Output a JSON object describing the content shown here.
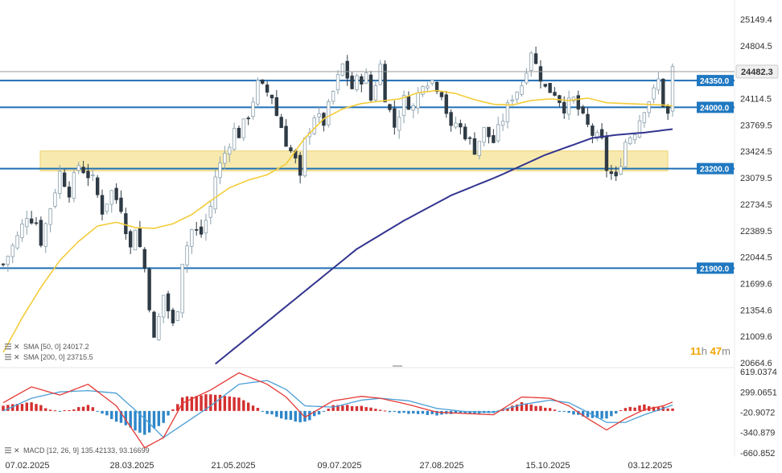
{
  "chart_data": [
    {
      "type": "candlestick",
      "title": "",
      "x_labels": [
        "07.02.2025",
        "28.03.2025",
        "21.05.2025",
        "09.07.2025",
        "27.08.2025",
        "15.10.2025",
        "03.12.2025"
      ],
      "y_ticks": [
        "25149.4",
        "24804.5",
        "24114.5",
        "23769.5",
        "23424.5",
        "23079.5",
        "22734.5",
        "22389.5",
        "22044.5",
        "21699.6",
        "21354.6",
        "21009.6",
        "20664.6"
      ],
      "ylim": [
        20664.6,
        25149.4
      ],
      "last_price": "24482.3",
      "countdown": {
        "hours": "11",
        "h": "h",
        "minutes": "47",
        "m": "m"
      },
      "levels": [
        {
          "value": 24350.0,
          "label": "24350.0"
        },
        {
          "value": 24000.0,
          "label": "24000.0"
        },
        {
          "value": 23200.0,
          "label": "23200.0"
        },
        {
          "value": 21900.0,
          "label": "21900.0"
        }
      ],
      "zone": {
        "from": 23170,
        "to": 23430,
        "color": "#f7e7a1"
      },
      "indicators": [
        {
          "name": "SMA",
          "params": "[50, 0]",
          "value": "24017.2",
          "color": "#f3cc3a"
        },
        {
          "name": "SMA",
          "params": "[200, 0]",
          "value": "23715.5",
          "color": "#33358f"
        }
      ],
      "close_path": [
        [
          0,
          21950
        ],
        [
          3,
          22300
        ],
        [
          5,
          22600
        ],
        [
          7,
          22500
        ],
        [
          8,
          22250
        ],
        [
          10,
          22700
        ],
        [
          12,
          23150
        ],
        [
          14,
          22900
        ],
        [
          16,
          23250
        ],
        [
          19,
          23050
        ],
        [
          21,
          22650
        ],
        [
          23,
          22900
        ],
        [
          25,
          22700
        ],
        [
          27,
          22150
        ],
        [
          28,
          22450
        ],
        [
          30,
          21900
        ],
        [
          32,
          20950
        ],
        [
          34,
          21550
        ],
        [
          36,
          21150
        ],
        [
          37,
          21400
        ],
        [
          38,
          22000
        ],
        [
          40,
          22400
        ],
        [
          42,
          22350
        ],
        [
          44,
          22700
        ],
        [
          45,
          23100
        ],
        [
          47,
          23400
        ],
        [
          49,
          23700
        ],
        [
          50,
          23650
        ],
        [
          52,
          23900
        ],
        [
          53,
          24100
        ],
        [
          54,
          24300
        ],
        [
          55,
          24250
        ],
        [
          57,
          24150
        ],
        [
          58,
          23900
        ],
        [
          59,
          23750
        ],
        [
          60,
          23550
        ],
        [
          62,
          23300
        ],
        [
          63,
          23050
        ],
        [
          64,
          23550
        ],
        [
          66,
          23900
        ],
        [
          68,
          23800
        ],
        [
          70,
          24200
        ],
        [
          72,
          24550
        ],
        [
          74,
          24250
        ],
        [
          75,
          24350
        ],
        [
          77,
          24400
        ],
        [
          78,
          24100
        ],
        [
          80,
          24550
        ],
        [
          81,
          24150
        ],
        [
          83,
          23750
        ],
        [
          85,
          24100
        ],
        [
          87,
          24000
        ],
        [
          89,
          24350
        ],
        [
          91,
          24350
        ],
        [
          93,
          24200
        ],
        [
          95,
          23700
        ],
        [
          96,
          23800
        ],
        [
          98,
          23650
        ],
        [
          100,
          23450
        ],
        [
          102,
          23700
        ],
        [
          104,
          23550
        ],
        [
          106,
          23850
        ],
        [
          108,
          24150
        ],
        [
          110,
          24300
        ],
        [
          112,
          24750
        ],
        [
          113,
          24550
        ],
        [
          115,
          24250
        ],
        [
          117,
          24200
        ],
        [
          119,
          24000
        ],
        [
          121,
          24100
        ],
        [
          123,
          23850
        ],
        [
          125,
          23650
        ],
        [
          127,
          23550
        ],
        [
          128,
          23200
        ],
        [
          130,
          23050
        ],
        [
          132,
          23550
        ],
        [
          134,
          23700
        ],
        [
          136,
          24000
        ],
        [
          138,
          24200
        ],
        [
          139,
          24350
        ],
        [
          140,
          24050
        ],
        [
          141,
          23900
        ],
        [
          142,
          24500
        ]
      ],
      "sma50_path": [
        [
          0,
          20800
        ],
        [
          4,
          21250
        ],
        [
          8,
          21650
        ],
        [
          12,
          22000
        ],
        [
          16,
          22250
        ],
        [
          20,
          22450
        ],
        [
          24,
          22500
        ],
        [
          28,
          22430
        ],
        [
          32,
          22420
        ],
        [
          36,
          22480
        ],
        [
          40,
          22600
        ],
        [
          44,
          22780
        ],
        [
          48,
          22950
        ],
        [
          52,
          23050
        ],
        [
          56,
          23120
        ],
        [
          60,
          23260
        ],
        [
          64,
          23600
        ],
        [
          68,
          23850
        ],
        [
          72,
          23980
        ],
        [
          76,
          24050
        ],
        [
          80,
          24080
        ],
        [
          84,
          24110
        ],
        [
          88,
          24190
        ],
        [
          92,
          24220
        ],
        [
          96,
          24180
        ],
        [
          100,
          24100
        ],
        [
          104,
          24040
        ],
        [
          108,
          24030
        ],
        [
          112,
          24090
        ],
        [
          116,
          24110
        ],
        [
          120,
          24090
        ],
        [
          124,
          24120
        ],
        [
          128,
          24060
        ],
        [
          132,
          24050
        ],
        [
          136,
          24040
        ],
        [
          140,
          24030
        ],
        [
          142,
          24017
        ]
      ],
      "sma200_path": [
        [
          45,
          20650
        ],
        [
          55,
          21150
        ],
        [
          65,
          21650
        ],
        [
          75,
          22150
        ],
        [
          85,
          22520
        ],
        [
          95,
          22850
        ],
        [
          105,
          23100
        ],
        [
          115,
          23380
        ],
        [
          125,
          23600
        ],
        [
          130,
          23640
        ],
        [
          136,
          23670
        ],
        [
          142,
          23716
        ]
      ],
      "macd": {
        "label": "MACD",
        "params": "[12, 26, 9]",
        "values": [
          "135.42133",
          "93.16699"
        ],
        "y_ticks": [
          "619.0374",
          "299.0651",
          "-20.9072",
          "-340.879",
          "-660.852"
        ],
        "ylim": [
          -660.852,
          619.0374
        ],
        "macd_color": "#e53935",
        "signal_color": "#4a9fd6",
        "hist_up_color": "#d32f2f",
        "hist_down_color": "#2e86c8",
        "macd_path": [
          [
            0,
            130
          ],
          [
            6,
            380
          ],
          [
            12,
            250
          ],
          [
            18,
            420
          ],
          [
            24,
            80
          ],
          [
            30,
            -580
          ],
          [
            34,
            -420
          ],
          [
            38,
            120
          ],
          [
            44,
            330
          ],
          [
            50,
            600
          ],
          [
            56,
            420
          ],
          [
            60,
            220
          ],
          [
            64,
            -100
          ],
          [
            70,
            160
          ],
          [
            76,
            230
          ],
          [
            80,
            200
          ],
          [
            86,
            100
          ],
          [
            92,
            -20
          ],
          [
            98,
            -40
          ],
          [
            104,
            -60
          ],
          [
            110,
            220
          ],
          [
            116,
            200
          ],
          [
            120,
            80
          ],
          [
            124,
            -120
          ],
          [
            128,
            -300
          ],
          [
            132,
            -120
          ],
          [
            136,
            20
          ],
          [
            140,
            80
          ],
          [
            142,
            140
          ]
        ],
        "signal_path": [
          [
            0,
            0
          ],
          [
            6,
            200
          ],
          [
            12,
            300
          ],
          [
            18,
            320
          ],
          [
            24,
            280
          ],
          [
            30,
            -120
          ],
          [
            34,
            -420
          ],
          [
            38,
            -220
          ],
          [
            44,
            80
          ],
          [
            50,
            420
          ],
          [
            56,
            480
          ],
          [
            60,
            340
          ],
          [
            64,
            80
          ],
          [
            70,
            60
          ],
          [
            76,
            170
          ],
          [
            80,
            200
          ],
          [
            86,
            160
          ],
          [
            92,
            40
          ],
          [
            98,
            -10
          ],
          [
            104,
            -20
          ],
          [
            110,
            100
          ],
          [
            116,
            170
          ],
          [
            120,
            130
          ],
          [
            124,
            -20
          ],
          [
            128,
            -180
          ],
          [
            132,
            -180
          ],
          [
            136,
            -60
          ],
          [
            140,
            40
          ],
          [
            142,
            93
          ]
        ],
        "hist_path": [
          [
            0,
            80
          ],
          [
            6,
            130
          ],
          [
            12,
            -20
          ],
          [
            18,
            90
          ],
          [
            24,
            -160
          ],
          [
            30,
            -380
          ],
          [
            34,
            -180
          ],
          [
            38,
            220
          ],
          [
            44,
            260
          ],
          [
            50,
            220
          ],
          [
            56,
            -40
          ],
          [
            60,
            -140
          ],
          [
            64,
            -180
          ],
          [
            70,
            90
          ],
          [
            76,
            80
          ],
          [
            80,
            10
          ],
          [
            86,
            -50
          ],
          [
            92,
            -60
          ],
          [
            98,
            -30
          ],
          [
            104,
            -40
          ],
          [
            110,
            130
          ],
          [
            116,
            40
          ],
          [
            120,
            -40
          ],
          [
            124,
            -100
          ],
          [
            128,
            -120
          ],
          [
            132,
            40
          ],
          [
            136,
            90
          ],
          [
            140,
            60
          ],
          [
            142,
            40
          ]
        ]
      }
    }
  ]
}
